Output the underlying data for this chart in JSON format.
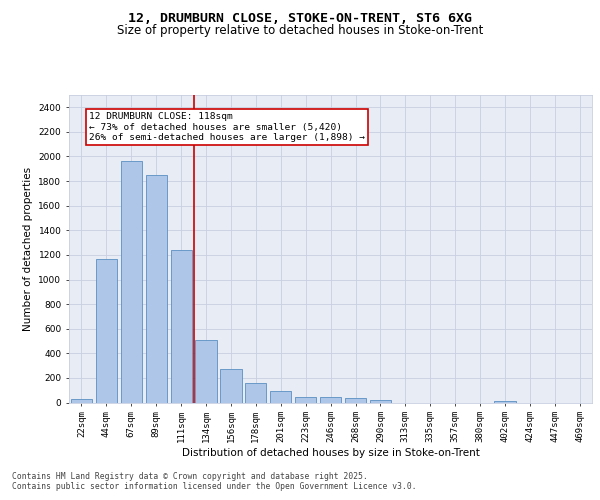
{
  "title_line1": "12, DRUMBURN CLOSE, STOKE-ON-TRENT, ST6 6XG",
  "title_line2": "Size of property relative to detached houses in Stoke-on-Trent",
  "xlabel": "Distribution of detached houses by size in Stoke-on-Trent",
  "ylabel": "Number of detached properties",
  "bar_labels": [
    "22sqm",
    "44sqm",
    "67sqm",
    "89sqm",
    "111sqm",
    "134sqm",
    "156sqm",
    "178sqm",
    "201sqm",
    "223sqm",
    "246sqm",
    "268sqm",
    "290sqm",
    "313sqm",
    "335sqm",
    "357sqm",
    "380sqm",
    "402sqm",
    "424sqm",
    "447sqm",
    "469sqm"
  ],
  "bar_values": [
    30,
    1170,
    1960,
    1850,
    1240,
    510,
    270,
    155,
    90,
    48,
    42,
    38,
    22,
    0,
    0,
    0,
    0,
    16,
    0,
    0,
    0
  ],
  "bar_color": "#aec6e8",
  "bar_edgecolor": "#5a8fc2",
  "vline_x": 4.5,
  "vline_color": "#cc0000",
  "annotation_text": "12 DRUMBURN CLOSE: 118sqm\n← 73% of detached houses are smaller (5,420)\n26% of semi-detached houses are larger (1,898) →",
  "annotation_box_color": "#cc0000",
  "annotation_bg": "#ffffff",
  "ylim": [
    0,
    2500
  ],
  "yticks": [
    0,
    200,
    400,
    600,
    800,
    1000,
    1200,
    1400,
    1600,
    1800,
    2000,
    2200,
    2400
  ],
  "grid_color": "#c8cfe0",
  "background_color": "#e8ecf4",
  "footer_line1": "Contains HM Land Registry data © Crown copyright and database right 2025.",
  "footer_line2": "Contains public sector information licensed under the Open Government Licence v3.0.",
  "title_fontsize": 9.5,
  "subtitle_fontsize": 8.5,
  "axis_label_fontsize": 7.5,
  "tick_fontsize": 6.5,
  "annotation_fontsize": 6.8,
  "footer_fontsize": 5.8
}
